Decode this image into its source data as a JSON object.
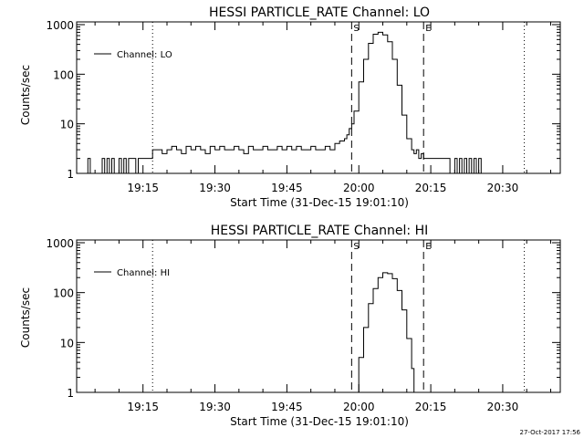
{
  "timestamp": "27-Oct-2017 17:56",
  "chart_data": [
    {
      "type": "line",
      "title": "HESSI PARTICLE_RATE Channel: LO",
      "xlabel": "Start Time (31-Dec-15 19:01:10)",
      "ylabel": "Counts/sec",
      "yscale": "log",
      "ylim": [
        1,
        1000
      ],
      "xlim": [
        "19:01:10",
        "20:42:00"
      ],
      "xticks": [
        "19:15",
        "19:30",
        "19:45",
        "20:00",
        "20:15",
        "20:30"
      ],
      "yticks": [
        "1",
        "10",
        "100",
        "1000"
      ],
      "legend": "top-left",
      "dotted_markers": [
        "19:17:00",
        "20:34:30"
      ],
      "dashed_markers": [
        {
          "time": "19:58:30",
          "label": "S"
        },
        {
          "time": "20:13:30",
          "label": "E"
        }
      ],
      "series": [
        {
          "name": "Channel: LO",
          "x": [
            "19:03:00",
            "19:03:30",
            "19:04:00",
            "19:06:00",
            "19:06:30",
            "19:07:00",
            "19:07:30",
            "19:08:00",
            "19:08:30",
            "19:09:00",
            "19:10:00",
            "19:10:30",
            "19:11:00",
            "19:11:30",
            "19:12:00",
            "19:13:00",
            "19:13:30",
            "19:14:00",
            "19:16:00",
            "19:16:30",
            "19:17:00",
            "19:18:00",
            "19:19:00",
            "19:20:00",
            "19:21:00",
            "19:22:00",
            "19:23:00",
            "19:24:00",
            "19:25:00",
            "19:26:00",
            "19:27:00",
            "19:28:00",
            "19:29:00",
            "19:30:00",
            "19:31:00",
            "19:32:00",
            "19:33:00",
            "19:34:00",
            "19:35:00",
            "19:36:00",
            "19:37:00",
            "19:38:00",
            "19:39:00",
            "19:40:00",
            "19:41:00",
            "19:42:00",
            "19:43:00",
            "19:44:00",
            "19:45:00",
            "19:46:00",
            "19:47:00",
            "19:48:00",
            "19:49:00",
            "19:50:00",
            "19:51:00",
            "19:52:00",
            "19:53:00",
            "19:54:00",
            "19:55:00",
            "19:56:00",
            "19:57:00",
            "19:57:30",
            "19:58:00",
            "19:58:30",
            "19:59:00",
            "20:00:00",
            "20:01:00",
            "20:02:00",
            "20:03:00",
            "20:04:00",
            "20:05:00",
            "20:06:00",
            "20:07:00",
            "20:08:00",
            "20:09:00",
            "20:10:00",
            "20:11:00",
            "20:11:30",
            "20:12:00",
            "20:12:30",
            "20:13:00",
            "20:13:30",
            "20:14:00",
            "20:15:00",
            "20:16:00",
            "20:17:00",
            "20:18:00",
            "20:19:00",
            "20:20:00",
            "20:20:30",
            "20:21:00",
            "20:21:30",
            "20:22:00",
            "20:22:30",
            "20:23:00",
            "20:23:30",
            "20:24:00",
            "20:24:30",
            "20:25:00",
            "20:25:30",
            "20:26:00"
          ],
          "y": [
            1,
            2,
            1,
            1,
            2,
            1,
            2,
            1,
            2,
            1,
            2,
            1,
            2,
            1,
            2,
            2,
            1,
            2,
            2,
            2,
            3,
            3,
            2.5,
            3,
            3.5,
            3,
            2.5,
            3.5,
            3,
            3.5,
            3,
            2.5,
            3.5,
            3,
            3.5,
            3,
            3,
            3.5,
            3,
            2.5,
            3.5,
            3,
            3,
            3.5,
            3,
            3,
            3.5,
            3,
            3.5,
            3,
            3.5,
            3,
            3,
            3.5,
            3,
            3,
            3.5,
            3,
            4,
            4.5,
            5,
            6,
            8,
            10,
            18,
            70,
            200,
            420,
            640,
            700,
            620,
            450,
            200,
            60,
            15,
            5,
            3,
            2.5,
            3,
            2,
            2.5,
            2,
            2,
            2,
            2,
            2,
            2,
            1,
            2,
            1,
            2,
            1,
            2,
            1,
            2,
            1,
            2,
            1,
            2,
            1,
            1
          ]
        }
      ]
    },
    {
      "type": "line",
      "title": "HESSI PARTICLE_RATE Channel: HI",
      "xlabel": "Start Time (31-Dec-15 19:01:10)",
      "ylabel": "Counts/sec",
      "yscale": "log",
      "ylim": [
        1,
        1000
      ],
      "xlim": [
        "19:01:10",
        "20:42:00"
      ],
      "xticks": [
        "19:15",
        "19:30",
        "19:45",
        "20:00",
        "20:15",
        "20:30"
      ],
      "yticks": [
        "1",
        "10",
        "100",
        "1000"
      ],
      "legend": "top-left",
      "dotted_markers": [
        "19:17:00",
        "20:34:30"
      ],
      "dashed_markers": [
        {
          "time": "19:58:30",
          "label": "S"
        },
        {
          "time": "20:13:30",
          "label": "E"
        }
      ],
      "series": [
        {
          "name": "Channel: HI",
          "x": [
            "19:59:15",
            "20:00:00",
            "20:01:00",
            "20:02:00",
            "20:03:00",
            "20:04:00",
            "20:05:00",
            "20:06:00",
            "20:07:00",
            "20:08:00",
            "20:09:00",
            "20:10:00",
            "20:11:00",
            "20:11:30"
          ],
          "y": [
            1,
            5,
            20,
            60,
            120,
            200,
            250,
            240,
            190,
            110,
            45,
            12,
            3,
            1
          ]
        }
      ]
    }
  ]
}
